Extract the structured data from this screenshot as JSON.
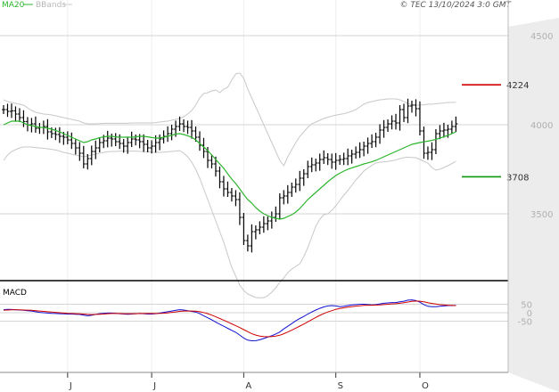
{
  "header": {
    "legend_ma": "MA20",
    "legend_bb": "BBands",
    "copyright": "© TEC 13/10/2024 3:0 GMT"
  },
  "colors": {
    "ma": "#2db52d",
    "bbands": "#c8c8c8",
    "price": "#000000",
    "macd": "#1010d0",
    "signal": "#d00000",
    "resistance": "#d00000",
    "support": "#0a9a0a",
    "grid": "#d4d4d4",
    "axis_bg": "#ececec",
    "axis_text": "#b0b0b0"
  },
  "chart_data": [
    {
      "type": "ohlc",
      "name": "price",
      "y_ticks": [
        3500,
        4000,
        4500
      ],
      "y_tick_labels": [
        "3500",
        "4000",
        "4500"
      ],
      "x_ticks": [
        {
          "label": "J",
          "index": 16
        },
        {
          "label": "J",
          "index": 37
        },
        {
          "label": "A",
          "index": 60
        },
        {
          "label": "S",
          "index": 83
        },
        {
          "label": "O",
          "index": 104
        }
      ],
      "levels": [
        {
          "label": "4224",
          "value": 4224,
          "kind": "resistance"
        },
        {
          "label": "3708",
          "value": 3708,
          "kind": "support"
        }
      ],
      "close": [
        4085,
        4075,
        4078,
        4060,
        4040,
        4018,
        4000,
        4005,
        3980,
        3985,
        3990,
        3960,
        3950,
        3945,
        3935,
        3930,
        3915,
        3895,
        3870,
        3840,
        3780,
        3810,
        3850,
        3870,
        3900,
        3910,
        3925,
        3920,
        3905,
        3895,
        3880,
        3900,
        3920,
        3915,
        3905,
        3890,
        3870,
        3880,
        3900,
        3920,
        3935,
        3950,
        3975,
        3990,
        4005,
        3990,
        3985,
        3965,
        3930,
        3885,
        3850,
        3800,
        3780,
        3740,
        3680,
        3640,
        3620,
        3600,
        3580,
        3480,
        3350,
        3320,
        3400,
        3410,
        3425,
        3445,
        3460,
        3480,
        3500,
        3590,
        3600,
        3620,
        3650,
        3665,
        3700,
        3725,
        3765,
        3775,
        3785,
        3805,
        3815,
        3805,
        3790,
        3800,
        3805,
        3810,
        3825,
        3835,
        3845,
        3860,
        3880,
        3895,
        3905,
        3930,
        3970,
        3985,
        4005,
        4020,
        4010,
        4085,
        4040,
        4105,
        4110,
        4090,
        3965,
        3840,
        3845,
        3860,
        3950,
        3965,
        3970,
        3975,
        3990,
        4005
      ],
      "ma20": [
        4000,
        4010,
        4020,
        4020,
        4020,
        4010,
        4000,
        3995,
        3990,
        3985,
        3985,
        3980,
        3975,
        3968,
        3960,
        3950,
        3940,
        3930,
        3920,
        3910,
        3900,
        3905,
        3915,
        3920,
        3928,
        3932,
        3935,
        3935,
        3932,
        3930,
        3930,
        3930,
        3930,
        3932,
        3935,
        3935,
        3932,
        3928,
        3925,
        3925,
        3930,
        3935,
        3940,
        3948,
        3950,
        3945,
        3938,
        3930,
        3915,
        3895,
        3875,
        3855,
        3830,
        3805,
        3780,
        3755,
        3725,
        3695,
        3670,
        3640,
        3608,
        3580,
        3560,
        3535,
        3515,
        3500,
        3490,
        3480,
        3475,
        3470,
        3475,
        3485,
        3495,
        3510,
        3530,
        3555,
        3580,
        3600,
        3620,
        3640,
        3660,
        3680,
        3698,
        3715,
        3728,
        3740,
        3750,
        3758,
        3765,
        3772,
        3780,
        3786,
        3792,
        3800,
        3810,
        3820,
        3830,
        3840,
        3850,
        3860,
        3870,
        3880,
        3890,
        3895,
        3900,
        3904,
        3908,
        3912,
        3918,
        3925,
        3932,
        3940,
        3950,
        3960
      ],
      "bb_upper": [
        4140,
        4130,
        4125,
        4120,
        4115,
        4110,
        4095,
        4080,
        4070,
        4065,
        4060,
        4058,
        4055,
        4050,
        4045,
        4040,
        4035,
        4030,
        4025,
        4020,
        4010,
        4005,
        4005,
        4005,
        4006,
        4008,
        4008,
        4008,
        4008,
        4008,
        4008,
        4008,
        4010,
        4010,
        4010,
        4010,
        4010,
        4010,
        4012,
        4015,
        4018,
        4020,
        4025,
        4030,
        4035,
        4045,
        4060,
        4080,
        4110,
        4150,
        4175,
        4180,
        4190,
        4195,
        4180,
        4200,
        4210,
        4250,
        4285,
        4290,
        4260,
        4200,
        4150,
        4100,
        4050,
        4000,
        3950,
        3900,
        3850,
        3800,
        3770,
        3820,
        3860,
        3900,
        3935,
        3960,
        3985,
        4005,
        4015,
        4025,
        4035,
        4042,
        4048,
        4054,
        4058,
        4062,
        4068,
        4075,
        4085,
        4100,
        4115,
        4125,
        4130,
        4135,
        4140,
        4142,
        4145,
        4145,
        4145,
        4140,
        4130,
        4120,
        4110,
        4110,
        4110,
        4112,
        4115,
        4115,
        4118,
        4120,
        4122,
        4125,
        4125,
        4126
      ],
      "bb_lower": [
        3800,
        3830,
        3850,
        3860,
        3870,
        3875,
        3875,
        3875,
        3872,
        3870,
        3868,
        3865,
        3862,
        3858,
        3852,
        3845,
        3840,
        3835,
        3830,
        3825,
        3820,
        3825,
        3830,
        3835,
        3840,
        3845,
        3848,
        3850,
        3850,
        3852,
        3852,
        3852,
        3852,
        3852,
        3850,
        3850,
        3848,
        3846,
        3845,
        3845,
        3846,
        3848,
        3850,
        3852,
        3855,
        3840,
        3820,
        3790,
        3750,
        3700,
        3640,
        3580,
        3520,
        3460,
        3400,
        3340,
        3270,
        3200,
        3150,
        3100,
        3070,
        3050,
        3040,
        3030,
        3028,
        3030,
        3040,
        3060,
        3085,
        3115,
        3140,
        3170,
        3190,
        3205,
        3220,
        3260,
        3310,
        3370,
        3430,
        3470,
        3495,
        3500,
        3520,
        3545,
        3575,
        3605,
        3630,
        3660,
        3690,
        3715,
        3740,
        3757,
        3772,
        3785,
        3790,
        3792,
        3794,
        3798,
        3802,
        3810,
        3815,
        3818,
        3816,
        3815,
        3805,
        3795,
        3785,
        3760,
        3745,
        3750,
        3760,
        3770,
        3782,
        3795
      ]
    },
    {
      "type": "line",
      "name": "MACD",
      "title": "MACD",
      "y_ticks": [
        50,
        0,
        -50
      ],
      "y_tick_labels": [
        "50",
        "0",
        "-50"
      ],
      "series": [
        {
          "key": "macd",
          "values": [
            18,
            20,
            19,
            18,
            16,
            14,
            12,
            10,
            6,
            2,
            0,
            -2,
            -4,
            -5,
            -6,
            -7,
            -8,
            -8,
            -9,
            -10,
            -14,
            -18,
            -15,
            -10,
            -6,
            -4,
            -2,
            -2,
            -4,
            -6,
            -8,
            -9,
            -8,
            -6,
            -5,
            -6,
            -8,
            -8,
            -6,
            -2,
            2,
            6,
            10,
            14,
            18,
            16,
            12,
            8,
            4,
            -6,
            -18,
            -30,
            -42,
            -56,
            -68,
            -80,
            -92,
            -104,
            -116,
            -132,
            -150,
            -162,
            -166,
            -165,
            -160,
            -152,
            -144,
            -136,
            -126,
            -114,
            -96,
            -80,
            -64,
            -48,
            -34,
            -22,
            -8,
            4,
            16,
            26,
            34,
            40,
            42,
            40,
            36,
            38,
            42,
            46,
            48,
            50,
            50,
            48,
            46,
            48,
            52,
            56,
            58,
            60,
            60,
            64,
            68,
            74,
            76,
            72,
            62,
            48,
            38,
            36,
            36,
            38,
            40,
            42,
            42,
            43
          ]
        },
        {
          "key": "signal",
          "values": [
            15,
            16,
            17,
            17,
            17,
            16,
            15,
            14,
            12,
            10,
            8,
            6,
            4,
            2,
            0,
            -2,
            -4,
            -5,
            -6,
            -7,
            -8,
            -10,
            -11,
            -10,
            -9,
            -8,
            -6,
            -5,
            -5,
            -5,
            -6,
            -6,
            -6,
            -6,
            -5,
            -5,
            -5,
            -5,
            -5,
            -4,
            -3,
            -1,
            2,
            5,
            8,
            10,
            10,
            10,
            9,
            6,
            1,
            -6,
            -14,
            -24,
            -34,
            -44,
            -55,
            -66,
            -77,
            -88,
            -100,
            -112,
            -124,
            -132,
            -138,
            -141,
            -142,
            -141,
            -138,
            -133,
            -124,
            -114,
            -103,
            -91,
            -79,
            -67,
            -54,
            -41,
            -28,
            -16,
            -5,
            4,
            12,
            20,
            25,
            29,
            33,
            36,
            39,
            41,
            43,
            44,
            44,
            45,
            46,
            48,
            50,
            52,
            53,
            56,
            59,
            63,
            67,
            69,
            68,
            64,
            59,
            55,
            51,
            48,
            46,
            44,
            43,
            42
          ]
        }
      ]
    }
  ]
}
